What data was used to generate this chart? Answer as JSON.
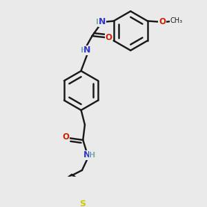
{
  "background_color": "#eaeaea",
  "bond_color": "#1a1a1a",
  "N_color": "#3333cc",
  "NH_color": "#7aadad",
  "O_color": "#cc2200",
  "S_color": "#cccc00",
  "bond_width": 1.8,
  "font_size": 8.5,
  "fig_size": [
    3.0,
    3.0
  ],
  "dpi": 100,
  "xlim": [
    0.0,
    1.0
  ],
  "ylim": [
    0.0,
    1.0
  ]
}
